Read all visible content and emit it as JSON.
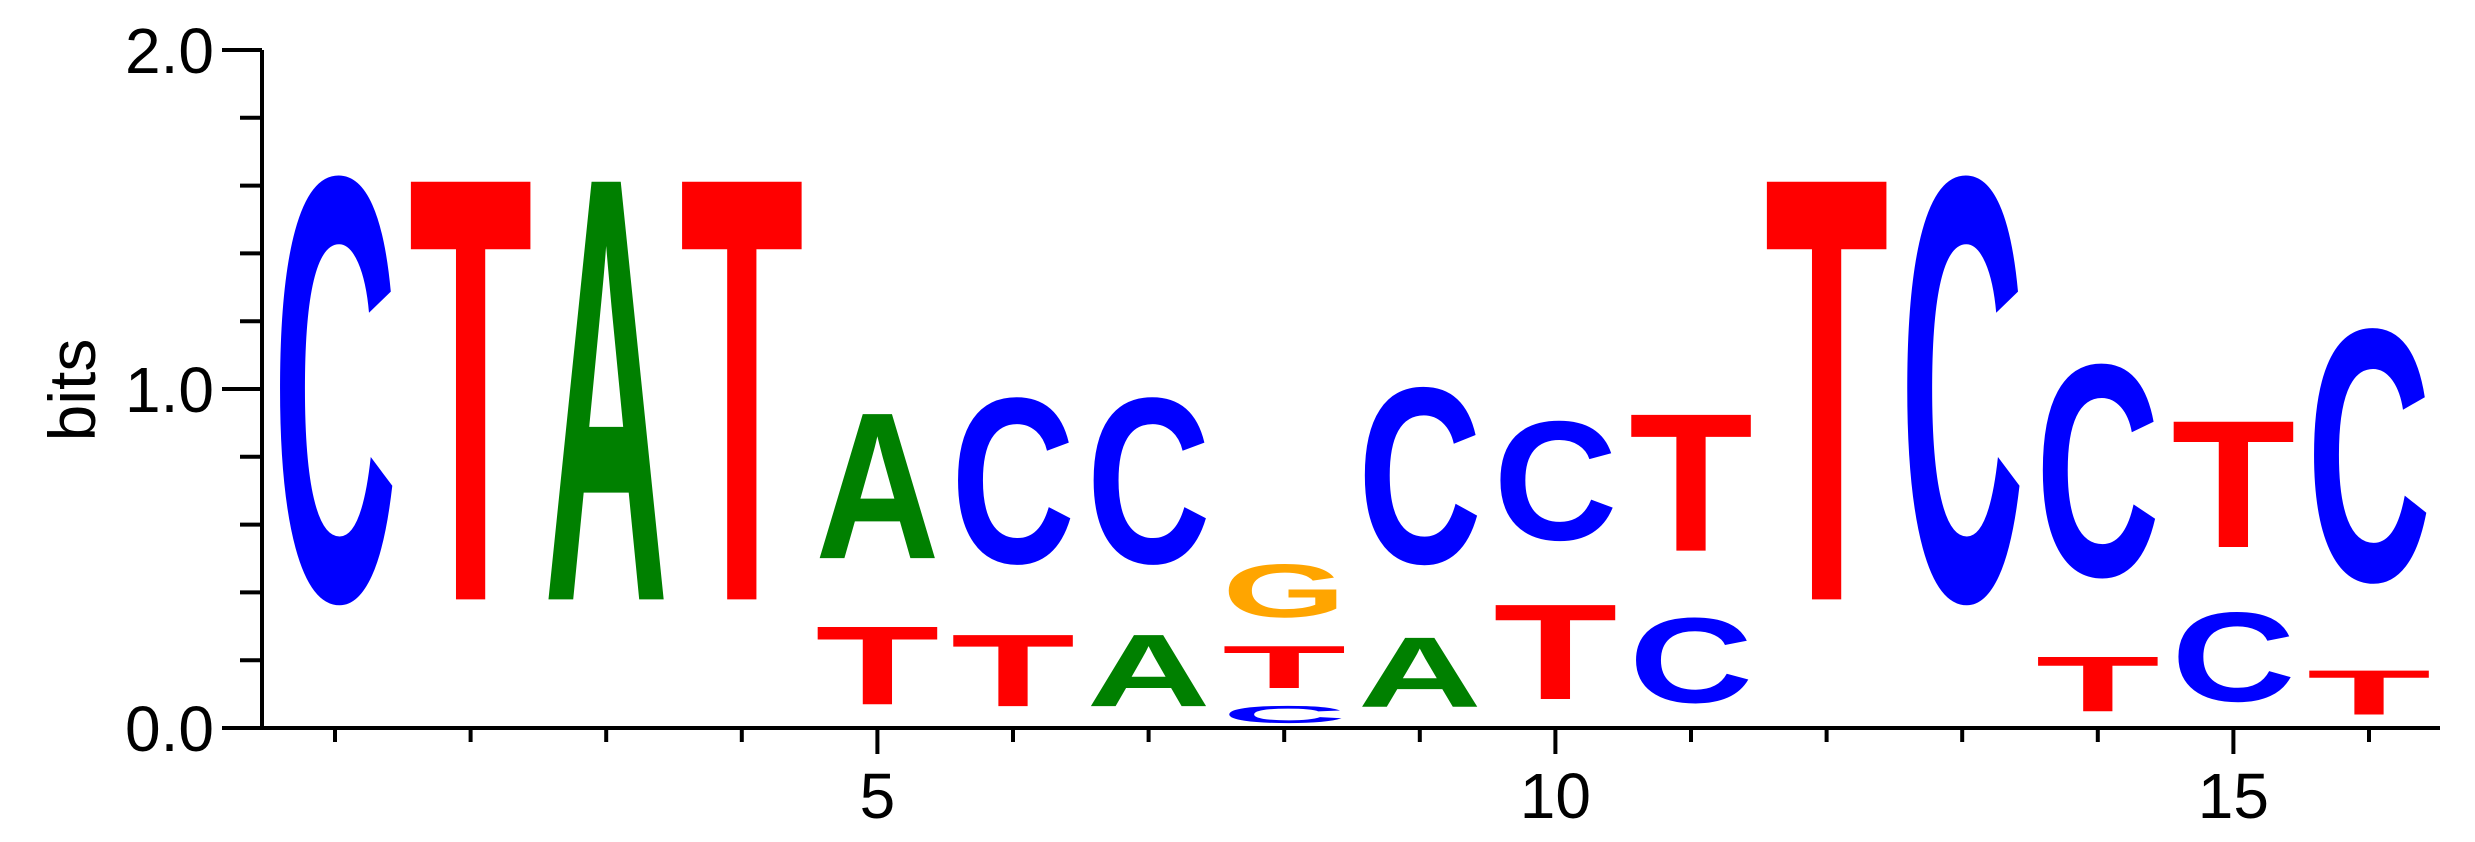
{
  "chart_data": {
    "type": "sequence-logo",
    "ylabel": "bits",
    "ylim": [
      0,
      2
    ],
    "y_major_ticks": [
      0,
      1,
      2
    ],
    "y_tick_labels": [
      "0.0",
      "1.0",
      "2.0"
    ],
    "y_minor_step": 0.2,
    "positions": [
      1,
      2,
      3,
      4,
      5,
      6,
      7,
      8,
      9,
      10,
      11,
      12,
      13,
      14,
      15,
      16
    ],
    "x_tick_labels": [
      {
        "position": 5,
        "label": "5"
      },
      {
        "position": 10,
        "label": "10"
      },
      {
        "position": 15,
        "label": "15"
      }
    ],
    "colors": {
      "A": "#008000",
      "C": "#0000ff",
      "G": "#ffa500",
      "T": "#ff0000"
    },
    "stacks": [
      {
        "position": 1,
        "letters": [
          {
            "base": "C",
            "height": 2.0
          }
        ]
      },
      {
        "position": 2,
        "letters": [
          {
            "base": "T",
            "height": 2.0
          }
        ]
      },
      {
        "position": 3,
        "letters": [
          {
            "base": "A",
            "height": 2.0
          }
        ]
      },
      {
        "position": 4,
        "letters": [
          {
            "base": "T",
            "height": 2.0
          }
        ]
      },
      {
        "position": 5,
        "letters": [
          {
            "base": "T",
            "height": 0.37
          },
          {
            "base": "A",
            "height": 0.69
          }
        ]
      },
      {
        "position": 6,
        "letters": [
          {
            "base": "T",
            "height": 0.34
          },
          {
            "base": "C",
            "height": 0.78
          }
        ]
      },
      {
        "position": 7,
        "letters": [
          {
            "base": "A",
            "height": 0.34
          },
          {
            "base": "C",
            "height": 0.78
          }
        ]
      },
      {
        "position": 8,
        "letters": [
          {
            "base": "C",
            "height": 0.08
          },
          {
            "base": "T",
            "height": 0.2
          },
          {
            "base": "G",
            "height": 0.25
          }
        ]
      },
      {
        "position": 9,
        "letters": [
          {
            "base": "A",
            "height": 0.33
          },
          {
            "base": "C",
            "height": 0.83
          }
        ]
      },
      {
        "position": 10,
        "letters": [
          {
            "base": "T",
            "height": 0.45
          },
          {
            "base": "C",
            "height": 0.56
          }
        ]
      },
      {
        "position": 11,
        "letters": [
          {
            "base": "C",
            "height": 0.4
          },
          {
            "base": "T",
            "height": 0.65
          }
        ]
      },
      {
        "position": 12,
        "letters": [
          {
            "base": "T",
            "height": 2.0
          }
        ]
      },
      {
        "position": 13,
        "letters": [
          {
            "base": "C",
            "height": 2.0
          }
        ]
      },
      {
        "position": 14,
        "letters": [
          {
            "base": "T",
            "height": 0.26
          },
          {
            "base": "C",
            "height": 1.0
          }
        ]
      },
      {
        "position": 15,
        "letters": [
          {
            "base": "C",
            "height": 0.42
          },
          {
            "base": "T",
            "height": 0.6
          }
        ]
      },
      {
        "position": 16,
        "letters": [
          {
            "base": "T",
            "height": 0.21
          },
          {
            "base": "C",
            "height": 1.19
          }
        ]
      }
    ]
  }
}
